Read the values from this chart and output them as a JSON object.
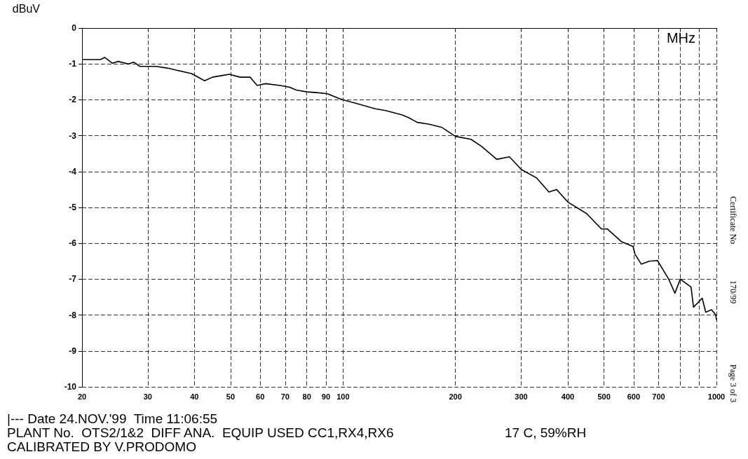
{
  "chart_data": {
    "type": "line",
    "xlabel": "MHz",
    "ylabel": "dBuV",
    "x": [
      20,
      22.4,
      23,
      24.1,
      25,
      26.6,
      27.5,
      28.6,
      30,
      31.6,
      34,
      36,
      39.3,
      42.6,
      44.7,
      47,
      49.6,
      53,
      56.4,
      58.9,
      62,
      67.9,
      72,
      75,
      80,
      85,
      90.8,
      97.3,
      100,
      108.4,
      122,
      130,
      144,
      150,
      158,
      170,
      184,
      200,
      220,
      235,
      258,
      279,
      300,
      330,
      356,
      373,
      400,
      449,
      492,
      510,
      556,
      598,
      605,
      629,
      660,
      695,
      745,
      774,
      800,
      855,
      868,
      916,
      936,
      970,
      995,
      1000
    ],
    "series": [
      {
        "color": "#000000",
        "values": [
          -0.88,
          -0.88,
          -0.82,
          -0.98,
          -0.93,
          -1.0,
          -0.95,
          -1.07,
          -1.07,
          -1.07,
          -1.12,
          -1.18,
          -1.27,
          -1.47,
          -1.37,
          -1.33,
          -1.29,
          -1.37,
          -1.37,
          -1.6,
          -1.55,
          -1.6,
          -1.65,
          -1.73,
          -1.78,
          -1.8,
          -1.83,
          -1.96,
          -2.0,
          -2.1,
          -2.25,
          -2.3,
          -2.42,
          -2.5,
          -2.63,
          -2.68,
          -2.77,
          -3.02,
          -3.1,
          -3.3,
          -3.66,
          -3.59,
          -3.94,
          -4.18,
          -4.57,
          -4.5,
          -4.85,
          -5.17,
          -5.6,
          -5.6,
          -5.95,
          -6.09,
          -6.3,
          -6.58,
          -6.5,
          -6.48,
          -7.0,
          -7.39,
          -7.0,
          -7.22,
          -7.78,
          -7.53,
          -7.92,
          -7.85,
          -7.99,
          -8.13
        ]
      }
    ],
    "log": "x",
    "xlim": [
      20,
      1000
    ],
    "xticks": [
      20,
      30,
      40,
      50,
      60,
      70,
      80,
      90,
      100,
      200,
      300,
      400,
      500,
      600,
      700,
      {
        "value": 800,
        "label": null
      },
      {
        "value": 900,
        "label": null
      },
      1000
    ],
    "ylim": [
      -10,
      0
    ],
    "yticks": [
      0,
      -1,
      -2,
      -3,
      -4,
      -5,
      -6,
      -7,
      -8,
      -9,
      -10
    ],
    "grid": true,
    "marker": "none",
    "line_style": "solid",
    "annotations": [
      "|--- Date 24.NOV.'99  Time 11:06:55",
      "PLANT No.  OTS2/1&2  DIFF ANA.  EQUIP USED CC1,RX4,RX6",
      "CALIBRATED BY V.PRODOMO",
      "17 C, 59%RH",
      "Certificate No",
      "170/99",
      "Page 3 of 3"
    ]
  }
}
